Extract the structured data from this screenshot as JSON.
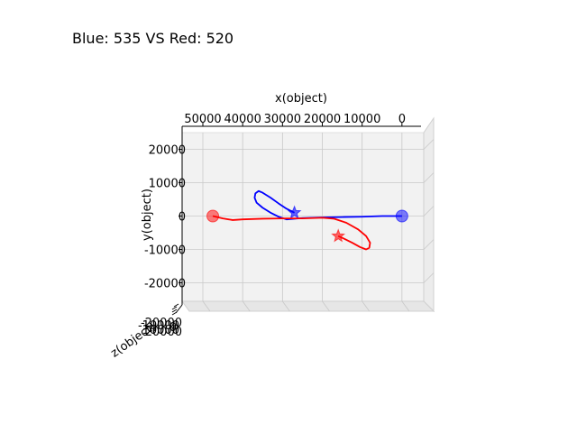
{
  "title": "Blue: 535 VS Red: 520",
  "chart_data": {
    "type": "line3d",
    "xlabel": "x(object)",
    "ylabel": "y(object)",
    "zlabel": "z(object)",
    "x_ticks": [
      "50000",
      "40000",
      "30000",
      "20000",
      "10000",
      "0"
    ],
    "y_ticks": [
      "20000",
      "10000",
      "0",
      "-10000",
      "-20000"
    ],
    "z_ticks": [
      "-20000",
      "-10000",
      "0",
      "10000",
      "20000"
    ],
    "xlim": [
      50000,
      -10000
    ],
    "ylim": [
      -25000,
      25000
    ],
    "grid": true,
    "series": [
      {
        "color": "#0000ff",
        "start": [
          0,
          0
        ],
        "end": [
          27000,
          1000
        ],
        "points": [
          [
            0,
            0
          ],
          [
            5000,
            0
          ],
          [
            10000,
            -200
          ],
          [
            15000,
            -300
          ],
          [
            20000,
            -400
          ],
          [
            25000,
            -600
          ],
          [
            27000,
            -800
          ],
          [
            29000,
            -1000
          ],
          [
            31000,
            -200
          ],
          [
            33000,
            1000
          ],
          [
            35000,
            2500
          ],
          [
            36500,
            4000
          ],
          [
            37000,
            5500
          ],
          [
            36800,
            6800
          ],
          [
            36000,
            7500
          ],
          [
            35000,
            7000
          ],
          [
            33000,
            5500
          ],
          [
            31000,
            3800
          ],
          [
            29000,
            2200
          ],
          [
            27000,
            1000
          ]
        ]
      },
      {
        "color": "#ff0000",
        "start": [
          47500,
          0
        ],
        "end": [
          16000,
          -6000
        ],
        "points": [
          [
            47500,
            0
          ],
          [
            45000,
            -700
          ],
          [
            42500,
            -1200
          ],
          [
            40000,
            -1000
          ],
          [
            35000,
            -800
          ],
          [
            30000,
            -700
          ],
          [
            25000,
            -700
          ],
          [
            20000,
            -500
          ],
          [
            17000,
            -800
          ],
          [
            14000,
            -2000
          ],
          [
            11000,
            -4000
          ],
          [
            9000,
            -6000
          ],
          [
            8000,
            -8000
          ],
          [
            8200,
            -9500
          ],
          [
            9000,
            -10000
          ],
          [
            10500,
            -9300
          ],
          [
            12500,
            -8000
          ],
          [
            14500,
            -6800
          ],
          [
            16000,
            -6000
          ]
        ]
      }
    ]
  }
}
